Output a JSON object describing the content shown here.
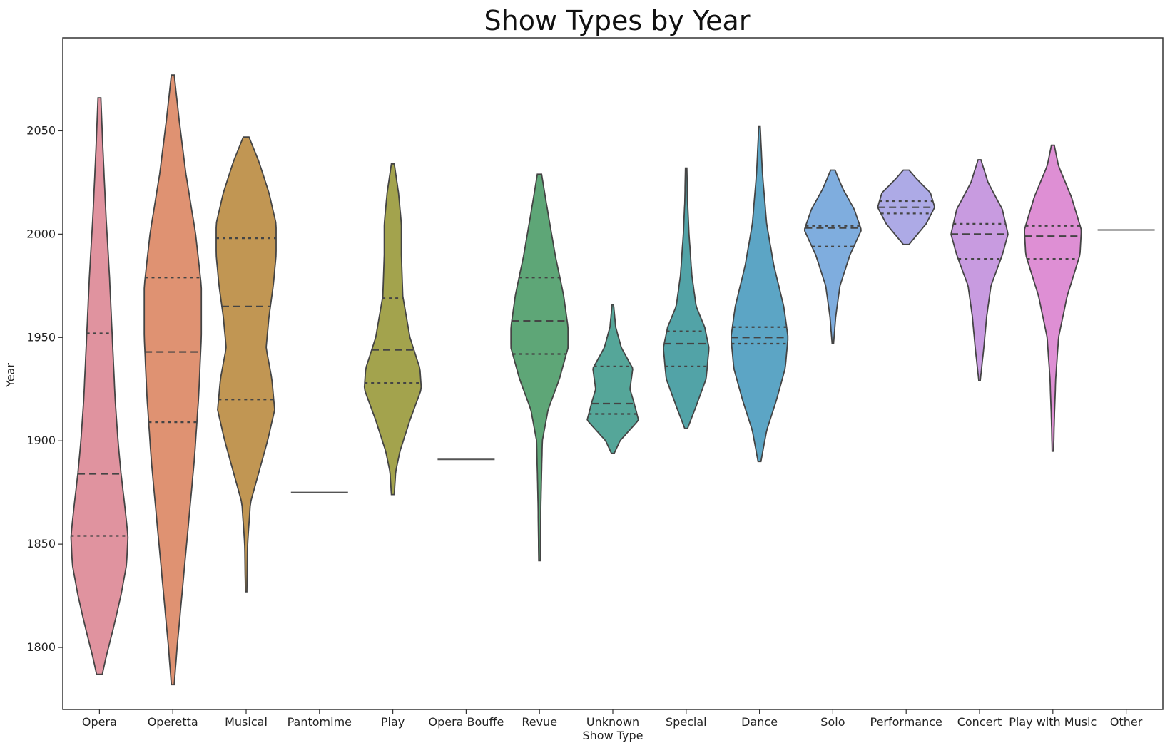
{
  "chart_data": {
    "type": "violin",
    "title": "Show Types by Year",
    "xlabel": "Show Type",
    "ylabel": "Year",
    "ylim": [
      1770,
      2095
    ],
    "yticks": [
      1800,
      1850,
      1900,
      1950,
      2000,
      2050
    ],
    "grid": false,
    "legend": "none",
    "inner": "quartile",
    "categories": [
      {
        "name": "Opera",
        "color": "#e0939f",
        "min": 1787,
        "max": 2066,
        "quartiles": [
          1854,
          1884,
          1952
        ],
        "profile": [
          [
            1787,
            4
          ],
          [
            1795,
            9
          ],
          [
            1810,
            20
          ],
          [
            1825,
            30
          ],
          [
            1840,
            38
          ],
          [
            1854,
            40
          ],
          [
            1870,
            35
          ],
          [
            1885,
            30
          ],
          [
            1900,
            26
          ],
          [
            1920,
            22
          ],
          [
            1950,
            18
          ],
          [
            1980,
            14
          ],
          [
            2010,
            9
          ],
          [
            2040,
            5
          ],
          [
            2066,
            2
          ]
        ]
      },
      {
        "name": "Operetta",
        "color": "#df9272",
        "min": 1782,
        "max": 2077,
        "quartiles": [
          1909,
          1943,
          1979
        ],
        "profile": [
          [
            1782,
            2
          ],
          [
            1800,
            6
          ],
          [
            1830,
            14
          ],
          [
            1860,
            22
          ],
          [
            1890,
            30
          ],
          [
            1920,
            36
          ],
          [
            1950,
            40
          ],
          [
            1975,
            40
          ],
          [
            2000,
            32
          ],
          [
            2030,
            18
          ],
          [
            2055,
            9
          ],
          [
            2077,
            2
          ]
        ]
      },
      {
        "name": "Musical",
        "color": "#c19653",
        "min": 1827,
        "max": 2047,
        "quartiles": [
          1920,
          1965,
          1998
        ],
        "profile": [
          [
            1827,
            1
          ],
          [
            1850,
            2
          ],
          [
            1870,
            6
          ],
          [
            1885,
            18
          ],
          [
            1900,
            30
          ],
          [
            1915,
            40
          ],
          [
            1930,
            36
          ],
          [
            1945,
            28
          ],
          [
            1960,
            32
          ],
          [
            1975,
            38
          ],
          [
            1990,
            42
          ],
          [
            2005,
            42
          ],
          [
            2020,
            32
          ],
          [
            2035,
            18
          ],
          [
            2047,
            4
          ]
        ]
      },
      {
        "name": "Pantomime",
        "color": "#555555",
        "min": 1875,
        "max": 1875,
        "quartiles": [],
        "profile": [
          [
            1875,
            40
          ]
        ]
      },
      {
        "name": "Play",
        "color": "#a3a34d",
        "min": 1874,
        "max": 2034,
        "quartiles": [
          1928,
          1944,
          1969
        ],
        "profile": [
          [
            1874,
            2
          ],
          [
            1885,
            4
          ],
          [
            1895,
            10
          ],
          [
            1910,
            24
          ],
          [
            1925,
            40
          ],
          [
            1935,
            38
          ],
          [
            1950,
            24
          ],
          [
            1970,
            14
          ],
          [
            1990,
            12
          ],
          [
            2005,
            12
          ],
          [
            2020,
            8
          ],
          [
            2034,
            2
          ]
        ]
      },
      {
        "name": "Opera Bouffe",
        "color": "#555555",
        "min": 1891,
        "max": 1891,
        "quartiles": [],
        "profile": [
          [
            1891,
            40
          ]
        ]
      },
      {
        "name": "Revue",
        "color": "#5ea677",
        "min": 1842,
        "max": 2029,
        "quartiles": [
          1942,
          1958,
          1979
        ],
        "profile": [
          [
            1842,
            1
          ],
          [
            1870,
            2
          ],
          [
            1900,
            4
          ],
          [
            1915,
            12
          ],
          [
            1930,
            28
          ],
          [
            1945,
            40
          ],
          [
            1955,
            40
          ],
          [
            1970,
            34
          ],
          [
            1990,
            22
          ],
          [
            2010,
            12
          ],
          [
            2029,
            3
          ]
        ]
      },
      {
        "name": "Unknown",
        "color": "#55a699",
        "min": 1894,
        "max": 1966,
        "quartiles": [
          1913,
          1918,
          1936
        ],
        "profile": [
          [
            1894,
            2
          ],
          [
            1900,
            10
          ],
          [
            1910,
            36
          ],
          [
            1918,
            30
          ],
          [
            1925,
            24
          ],
          [
            1935,
            28
          ],
          [
            1945,
            12
          ],
          [
            1955,
            4
          ],
          [
            1966,
            1
          ]
        ]
      },
      {
        "name": "Special",
        "color": "#52a3a7",
        "min": 1906,
        "max": 2032,
        "quartiles": [
          1936,
          1947,
          1953
        ],
        "profile": [
          [
            1906,
            2
          ],
          [
            1915,
            12
          ],
          [
            1930,
            28
          ],
          [
            1945,
            32
          ],
          [
            1955,
            26
          ],
          [
            1965,
            14
          ],
          [
            1980,
            8
          ],
          [
            2000,
            4
          ],
          [
            2015,
            2
          ],
          [
            2032,
            1
          ]
        ]
      },
      {
        "name": "Dance",
        "color": "#5ca5c5",
        "min": 1890,
        "max": 2052,
        "quartiles": [
          1947,
          1950,
          1955
        ],
        "profile": [
          [
            1890,
            2
          ],
          [
            1905,
            10
          ],
          [
            1920,
            24
          ],
          [
            1935,
            36
          ],
          [
            1950,
            40
          ],
          [
            1965,
            34
          ],
          [
            1985,
            20
          ],
          [
            2005,
            10
          ],
          [
            2030,
            4
          ],
          [
            2052,
            1
          ]
        ]
      },
      {
        "name": "Solo",
        "color": "#7fadde",
        "min": 1947,
        "max": 2031,
        "quartiles": [
          1994,
          2003,
          2004
        ],
        "profile": [
          [
            1947,
            1
          ],
          [
            1960,
            4
          ],
          [
            1975,
            10
          ],
          [
            1990,
            24
          ],
          [
            2002,
            40
          ],
          [
            2012,
            30
          ],
          [
            2022,
            14
          ],
          [
            2031,
            3
          ]
        ]
      },
      {
        "name": "Performance",
        "color": "#adaae6",
        "min": 1995,
        "max": 2031,
        "quartiles": [
          2010,
          2013,
          2016
        ],
        "profile": [
          [
            1995,
            4
          ],
          [
            2000,
            16
          ],
          [
            2005,
            28
          ],
          [
            2013,
            40
          ],
          [
            2020,
            34
          ],
          [
            2027,
            14
          ],
          [
            2031,
            4
          ]
        ]
      },
      {
        "name": "Concert",
        "color": "#c89be0",
        "min": 1929,
        "max": 2036,
        "quartiles": [
          1988,
          2000,
          2005
        ],
        "profile": [
          [
            1929,
            1
          ],
          [
            1945,
            6
          ],
          [
            1960,
            10
          ],
          [
            1975,
            16
          ],
          [
            1990,
            32
          ],
          [
            2000,
            40
          ],
          [
            2012,
            32
          ],
          [
            2025,
            12
          ],
          [
            2036,
            2
          ]
        ]
      },
      {
        "name": "Play with Music",
        "color": "#de8fd4",
        "min": 1895,
        "max": 2043,
        "quartiles": [
          1988,
          1999,
          2004
        ],
        "profile": [
          [
            1895,
            1
          ],
          [
            1910,
            2
          ],
          [
            1930,
            4
          ],
          [
            1950,
            8
          ],
          [
            1970,
            20
          ],
          [
            1990,
            38
          ],
          [
            2002,
            40
          ],
          [
            2018,
            26
          ],
          [
            2033,
            8
          ],
          [
            2043,
            2
          ]
        ]
      },
      {
        "name": "Other",
        "color": "#555555",
        "min": 2002,
        "max": 2002,
        "quartiles": [],
        "profile": [
          [
            2002,
            40
          ]
        ]
      }
    ]
  }
}
